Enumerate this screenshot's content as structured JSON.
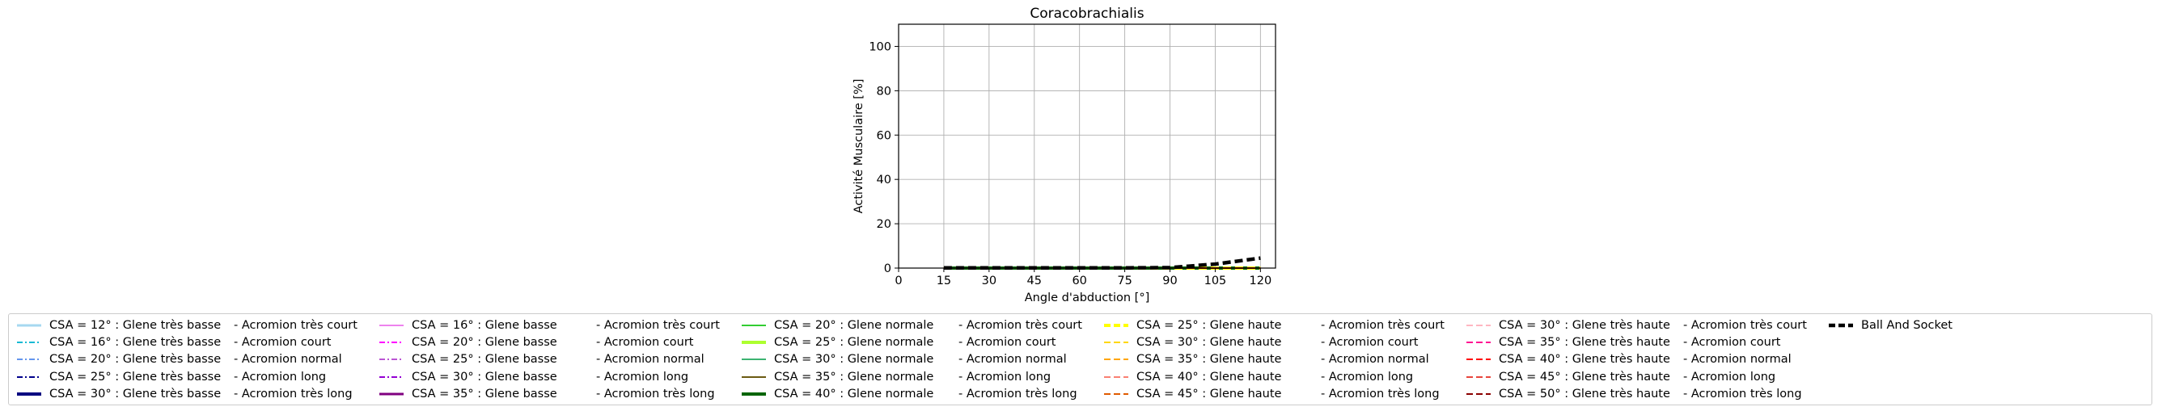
{
  "chart_data": {
    "type": "line",
    "title": "Coracobrachialis",
    "xlabel": "Angle d'abduction [°]",
    "ylabel": "Activité Musculaire [%]",
    "xlim": [
      0,
      125
    ],
    "ylim": [
      0,
      110
    ],
    "xticks": [
      0,
      15,
      30,
      45,
      60,
      75,
      90,
      105,
      120
    ],
    "yticks": [
      0,
      20,
      40,
      60,
      80,
      100
    ],
    "grid": true,
    "legend_position": "bottom",
    "x": [
      15,
      30,
      45,
      60,
      75,
      90,
      105,
      120
    ],
    "series": [
      {
        "name": "CSA = 12° : Glene très basse",
        "suffix": "- Acromion très court",
        "color": "#a6d8f0",
        "dash": "solid",
        "width": 3,
        "values": [
          0,
          0,
          0,
          0,
          0,
          0,
          0,
          0
        ]
      },
      {
        "name": "CSA = 16° : Glene très basse",
        "suffix": "- Acromion court",
        "color": "#17b9d4",
        "dash": "dashdot",
        "width": 2,
        "values": [
          0,
          0,
          0,
          0,
          0,
          0,
          0,
          0
        ]
      },
      {
        "name": "CSA = 20° : Glene très basse",
        "suffix": "- Acromion normal",
        "color": "#6495ed",
        "dash": "dashdot",
        "width": 1.5,
        "values": [
          0,
          0,
          0,
          0,
          0,
          0,
          0,
          0
        ]
      },
      {
        "name": "CSA = 25° : Glene très basse",
        "suffix": "- Acromion long",
        "color": "#00008b",
        "dash": "dashdot",
        "width": 2,
        "values": [
          0,
          0,
          0,
          0,
          0,
          0,
          0,
          0
        ]
      },
      {
        "name": "CSA = 30° : Glene très basse",
        "suffix": "- Acromion très long",
        "color": "#000080",
        "dash": "solid",
        "width": 4,
        "values": [
          0,
          0,
          0,
          0,
          0,
          0,
          0,
          0
        ]
      },
      {
        "name": "CSA = 16° : Glene basse",
        "suffix": "- Acromion très court",
        "color": "#ee82ee",
        "dash": "solid",
        "width": 2,
        "values": [
          0,
          0,
          0,
          0,
          0,
          0,
          0,
          0
        ]
      },
      {
        "name": "CSA = 20° : Glene basse",
        "suffix": "- Acromion court",
        "color": "#ff00ff",
        "dash": "dashdot",
        "width": 2,
        "values": [
          0,
          0,
          0,
          0,
          0,
          0,
          0,
          0
        ]
      },
      {
        "name": "CSA = 25° : Glene basse",
        "suffix": "- Acromion normal",
        "color": "#ba55d3",
        "dash": "dashdot",
        "width": 1.5,
        "values": [
          0,
          0,
          0,
          0,
          0,
          0,
          0,
          0
        ]
      },
      {
        "name": "CSA = 30° : Glene basse",
        "suffix": "- Acromion long",
        "color": "#9400d3",
        "dash": "dashdot",
        "width": 1.5,
        "values": [
          0,
          0,
          0,
          0,
          0,
          0,
          0,
          0
        ]
      },
      {
        "name": "CSA = 35° : Glene basse",
        "suffix": "- Acromion très long",
        "color": "#800080",
        "dash": "solid",
        "width": 3,
        "values": [
          0,
          0,
          0,
          0,
          0,
          0,
          0,
          0
        ]
      },
      {
        "name": "CSA = 20° : Glene normale",
        "suffix": "- Acromion très court",
        "color": "#32cd32",
        "dash": "solid",
        "width": 1.5,
        "values": [
          0,
          0,
          0,
          0,
          0,
          0,
          0,
          0
        ]
      },
      {
        "name": "CSA = 25° : Glene normale",
        "suffix": "- Acromion court",
        "color": "#adff2f",
        "dash": "solid",
        "width": 4,
        "values": [
          0,
          0,
          0,
          0,
          0,
          0,
          0,
          0
        ]
      },
      {
        "name": "CSA = 30° : Glene normale",
        "suffix": "- Acromion normal",
        "color": "#3cb371",
        "dash": "solid",
        "width": 1.5,
        "values": [
          0,
          0,
          0,
          0,
          0,
          0,
          0,
          0
        ]
      },
      {
        "name": "CSA = 35° : Glene normale",
        "suffix": "- Acromion long",
        "color": "#6b5a12",
        "dash": "solid",
        "width": 1.5,
        "values": [
          0,
          0,
          0,
          0,
          0,
          0,
          0,
          0
        ]
      },
      {
        "name": "CSA = 40° : Glene normale",
        "suffix": "- Acromion très long",
        "color": "#006400",
        "dash": "solid",
        "width": 4,
        "values": [
          0,
          0,
          0,
          0,
          0,
          0,
          0,
          0
        ]
      },
      {
        "name": "CSA = 25° : Glene haute",
        "suffix": "- Acromion très court",
        "color": "#ffff00",
        "dash": "dashed",
        "width": 4,
        "values": [
          0,
          0,
          0,
          0,
          0,
          0,
          0,
          0
        ]
      },
      {
        "name": "CSA = 30° : Glene haute",
        "suffix": "- Acromion court",
        "color": "#ffd700",
        "dash": "dashed",
        "width": 2,
        "values": [
          0,
          0,
          0,
          0,
          0,
          0,
          0,
          0
        ]
      },
      {
        "name": "CSA = 35° : Glene haute",
        "suffix": "- Acromion normal",
        "color": "#ffa500",
        "dash": "dashed",
        "width": 2,
        "values": [
          0,
          0,
          0,
          0,
          0,
          0,
          0,
          0
        ]
      },
      {
        "name": "CSA = 40° : Glene haute",
        "suffix": "- Acromion long",
        "color": "#fa8072",
        "dash": "dashed",
        "width": 1.5,
        "values": [
          0,
          0,
          0,
          0,
          0,
          0,
          0,
          0
        ]
      },
      {
        "name": "CSA = 45° : Glene haute",
        "suffix": "- Acromion très long",
        "color": "#e05a00",
        "dash": "dashed",
        "width": 2,
        "values": [
          0,
          0,
          0,
          0,
          0,
          0,
          0,
          0
        ]
      },
      {
        "name": "CSA = 30° : Glene très haute",
        "suffix": "- Acromion très court",
        "color": "#ffb6c1",
        "dash": "dashed",
        "width": 1.5,
        "values": [
          0,
          0,
          0,
          0,
          0,
          0,
          0,
          0
        ]
      },
      {
        "name": "CSA = 35° : Glene très haute",
        "suffix": "- Acromion court",
        "color": "#ff1493",
        "dash": "dashed",
        "width": 2,
        "values": [
          0,
          0,
          0,
          0,
          0,
          0,
          0,
          0
        ]
      },
      {
        "name": "CSA = 40° : Glene très haute",
        "suffix": "- Acromion normal",
        "color": "#ff0000",
        "dash": "dashed",
        "width": 2,
        "values": [
          0,
          0,
          0,
          0,
          0,
          0,
          0,
          0
        ]
      },
      {
        "name": "CSA = 45° : Glene très haute",
        "suffix": "- Acromion long",
        "color": "#e8453c",
        "dash": "dashed",
        "width": 1.5,
        "values": [
          0,
          0,
          0,
          0,
          0,
          0,
          0,
          0
        ]
      },
      {
        "name": "CSA = 50° : Glene très haute",
        "suffix": "- Acromion très long",
        "color": "#8b0000",
        "dash": "dashed",
        "width": 2,
        "values": [
          0,
          0,
          0,
          0,
          0,
          0,
          0,
          0
        ]
      },
      {
        "name": "Ball And Socket",
        "suffix": "",
        "color": "#000000",
        "dash": "dashed",
        "width": 4.5,
        "values": [
          0.1,
          0.1,
          0.1,
          0.1,
          0.1,
          0.2,
          1.8,
          4.5
        ]
      }
    ]
  }
}
